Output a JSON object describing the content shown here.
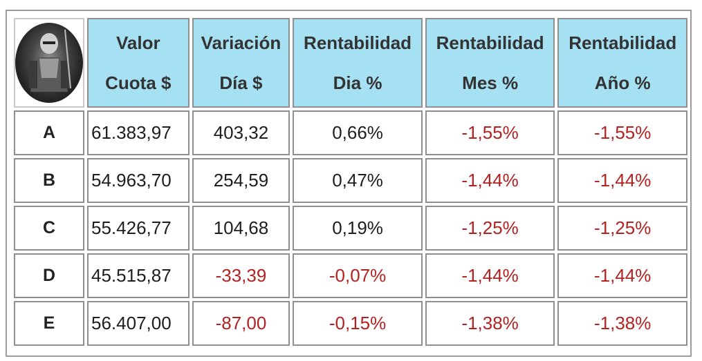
{
  "header": {
    "columns": [
      {
        "line1": "Valor",
        "line2": "Cuota $"
      },
      {
        "line1": "Variación",
        "line2": "Día $"
      },
      {
        "line1": "Rentabilidad",
        "line2": "Dia %"
      },
      {
        "line1": "Rentabilidad",
        "line2": "Mes %"
      },
      {
        "line1": "Rentabilidad",
        "line2": "Año %"
      }
    ]
  },
  "colors": {
    "header_bg": "#a6e0f3",
    "negative": "#b22222",
    "border": "#8e8e8e"
  },
  "rows": [
    {
      "fund": "A",
      "valor_cuota": "61.383,97",
      "variacion_dia": "403,32",
      "rent_dia": "0,66%",
      "rent_mes": "-1,55%",
      "rent_ano": "-1,55%"
    },
    {
      "fund": "B",
      "valor_cuota": "54.963,70",
      "variacion_dia": "254,59",
      "rent_dia": "0,47%",
      "rent_mes": "-1,44%",
      "rent_ano": "-1,44%"
    },
    {
      "fund": "C",
      "valor_cuota": "55.426,77",
      "variacion_dia": "104,68",
      "rent_dia": "0,19%",
      "rent_mes": "-1,25%",
      "rent_ano": "-1,25%"
    },
    {
      "fund": "D",
      "valor_cuota": "45.515,87",
      "variacion_dia": "-33,39",
      "rent_dia": "-0,07%",
      "rent_mes": "-1,44%",
      "rent_ano": "-1,44%"
    },
    {
      "fund": "E",
      "valor_cuota": "56.407,00",
      "variacion_dia": "-87,00",
      "rent_dia": "-0,15%",
      "rent_mes": "-1,38%",
      "rent_ano": "-1,38%"
    }
  ]
}
